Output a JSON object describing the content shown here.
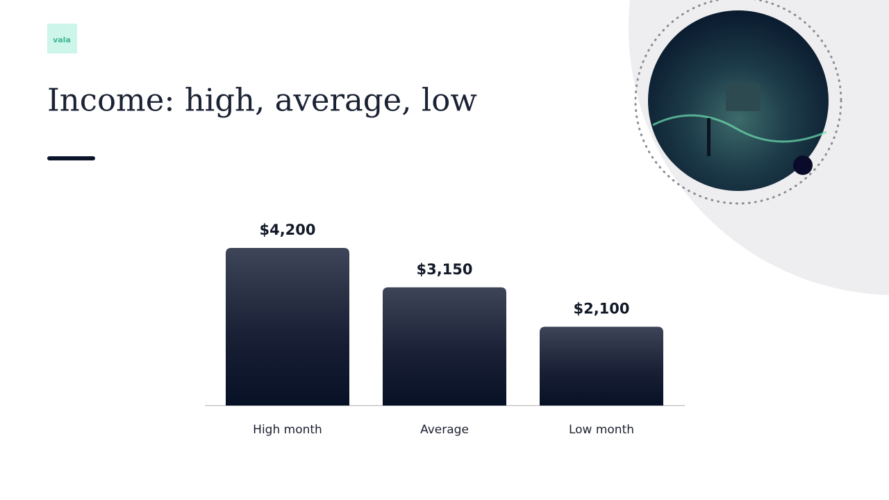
{
  "logo": "vala",
  "chart_data": {
    "type": "bar",
    "title": "Income: high, average, low",
    "categories": [
      "High month",
      "Average",
      "Low month"
    ],
    "values": [
      4200,
      3150,
      2100
    ],
    "value_labels": [
      "$4,200",
      "$3,150",
      "$2,100"
    ],
    "color": "#0b1429"
  }
}
